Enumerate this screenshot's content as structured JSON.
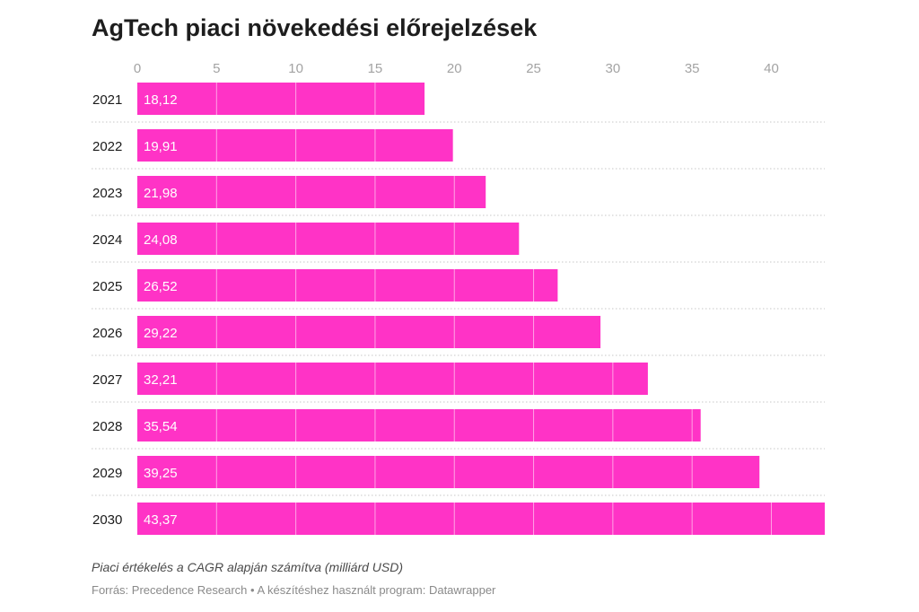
{
  "chart_data": {
    "type": "bar",
    "orientation": "horizontal",
    "title": "AgTech piaci növekedési előrejelzések",
    "categories": [
      "2021",
      "2022",
      "2023",
      "2024",
      "2025",
      "2026",
      "2027",
      "2028",
      "2029",
      "2030"
    ],
    "values": [
      18.12,
      19.91,
      21.98,
      24.08,
      26.52,
      29.22,
      32.21,
      35.54,
      39.25,
      43.37
    ],
    "value_labels": [
      "18,12",
      "19,91",
      "21,98",
      "24,08",
      "26,52",
      "29,22",
      "32,21",
      "35,54",
      "39,25",
      "43,37"
    ],
    "x_ticks": [
      0,
      5,
      10,
      15,
      20,
      25,
      30,
      35,
      40
    ],
    "x_axis_position": "top",
    "xlim": [
      0,
      43.37
    ],
    "grid": true,
    "bar_color": "#ff33c6",
    "note": "Piaci értékelés a CAGR alapján számítva (milliárd USD)",
    "source": "Forrás: Precedence Research • A készítéshez használt program: Datawrapper"
  }
}
